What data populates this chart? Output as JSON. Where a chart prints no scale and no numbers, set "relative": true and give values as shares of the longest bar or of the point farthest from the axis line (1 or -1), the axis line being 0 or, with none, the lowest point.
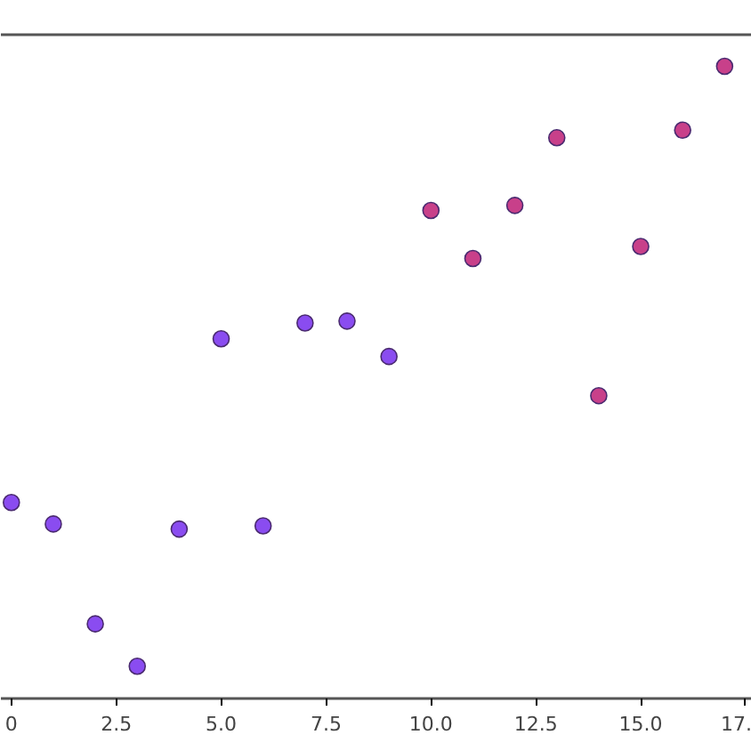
{
  "chart_data": {
    "type": "scatter",
    "relative": true,
    "x": [
      0,
      1,
      2,
      3,
      4,
      5,
      6,
      7,
      8,
      9,
      10,
      11,
      12,
      13,
      14,
      15,
      16,
      17
    ],
    "values": [
      0.31,
      0.276,
      0.118,
      0.051,
      0.268,
      0.569,
      0.273,
      0.594,
      0.597,
      0.541,
      0.772,
      0.696,
      0.78,
      0.887,
      0.479,
      0.715,
      0.899,
      1
    ],
    "colors": [
      "#8a4cf0",
      "#8a4cf0",
      "#8a4cf0",
      "#8a4cf0",
      "#8a4cf0",
      "#8a4cf0",
      "#8a4cf0",
      "#8a4cf0",
      "#8a4cf0",
      "#8a4cf0",
      "#c8408a",
      "#c8408a",
      "#c8408a",
      "#c8408a",
      "#c8408a",
      "#c8408a",
      "#c8408a",
      "#c8408a"
    ],
    "xlim": [
      -0.25,
      17.65
    ],
    "xticks": [
      {
        "value": 0,
        "label": "0"
      },
      2.5,
      {
        "value": 5,
        "label": "5.0"
      },
      7.5,
      {
        "value": 10,
        "label": "10.0"
      },
      12.5,
      {
        "value": 15,
        "label": "15.0"
      },
      {
        "value": 17.5,
        "label": "17."
      }
    ],
    "marker": "circle",
    "grid": false
  }
}
